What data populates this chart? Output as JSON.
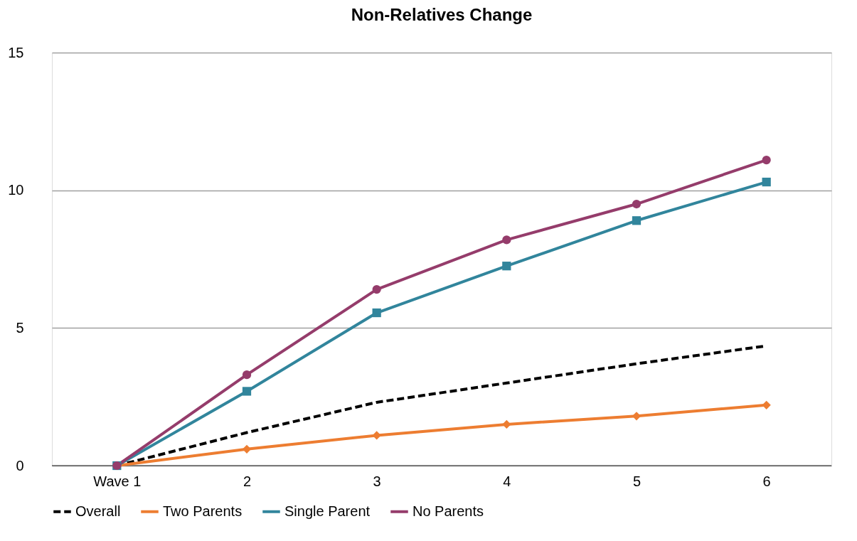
{
  "chart_data": {
    "type": "line",
    "title": "Non-Relatives Change",
    "categories": [
      "Wave 1",
      "2",
      "3",
      "4",
      "5",
      "6"
    ],
    "ylim": [
      0,
      15
    ],
    "yticks": [
      0,
      5,
      10,
      15
    ],
    "grid": "y",
    "legend": "bottom",
    "series": [
      {
        "name": "Overall",
        "color": "#000000",
        "line_style": "dashed",
        "marker": "none",
        "values": [
          0,
          1.2,
          2.3,
          3.0,
          3.7,
          4.35
        ]
      },
      {
        "name": "Two Parents",
        "color": "#ed7d31",
        "line_style": "solid",
        "marker": "diamond",
        "values": [
          0,
          0.6,
          1.1,
          1.5,
          1.8,
          2.2
        ]
      },
      {
        "name": "Single Parent",
        "color": "#31859c",
        "line_style": "solid",
        "marker": "square",
        "values": [
          0,
          2.7,
          5.55,
          7.25,
          8.9,
          10.3
        ]
      },
      {
        "name": "No Parents",
        "color": "#953c6b",
        "line_style": "solid",
        "marker": "circle",
        "values": [
          0,
          3.3,
          6.4,
          8.2,
          9.5,
          11.1
        ]
      }
    ]
  }
}
